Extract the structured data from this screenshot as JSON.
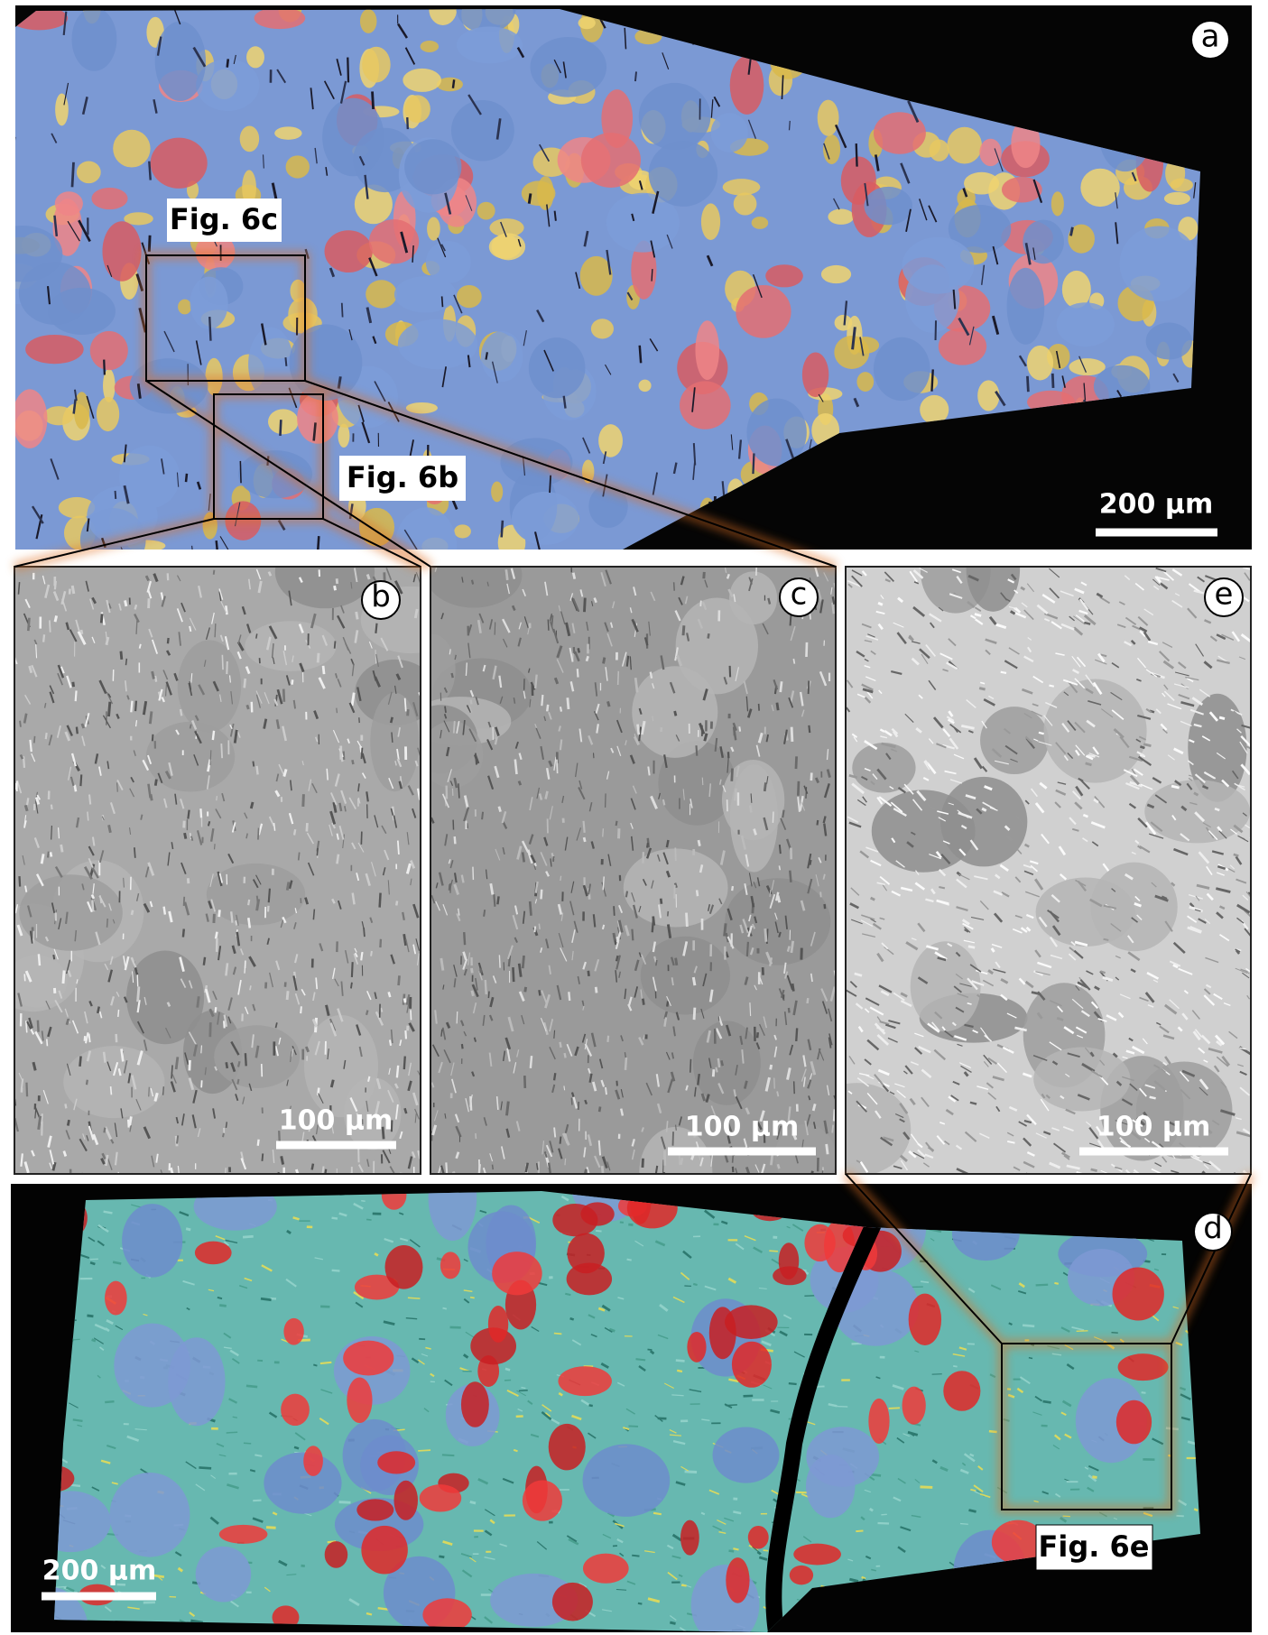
{
  "panels": [
    {
      "label": "a",
      "scale_bar": "200 µm",
      "insets": [
        "Fig. 6c",
        "Fig. 6b"
      ]
    },
    {
      "label": "b",
      "scale_bar": "100 µm"
    },
    {
      "label": "c",
      "scale_bar": "100 µm"
    },
    {
      "label": "e",
      "scale_bar": "100 µm"
    },
    {
      "label": "d",
      "scale_bar": "200 µm",
      "insets": [
        "Fig. 6e"
      ]
    }
  ]
}
